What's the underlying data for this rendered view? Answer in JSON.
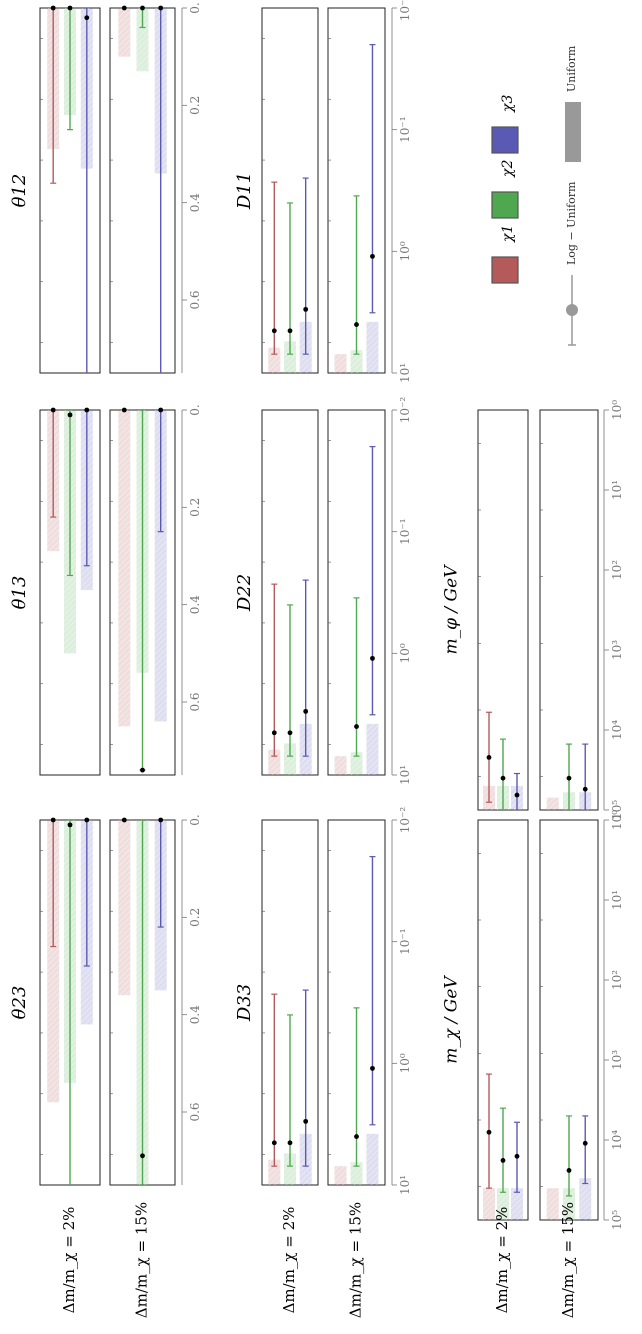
{
  "row_labels": [
    "Δm/m_χ = 2%",
    "Δm/m_χ = 15%"
  ],
  "colors": {
    "chi1": "#b55a5a",
    "chi2": "#4fa84f",
    "chi3": "#5a5ab5",
    "axis": "#444444",
    "tick_text": "#777777"
  },
  "legend": {
    "chi_labels": [
      "χ1",
      "χ2",
      "χ3"
    ],
    "prior_labels": [
      "Log − Uniform",
      "Uniform"
    ]
  },
  "chart_data": [
    {
      "type": "interval",
      "title": "θ12",
      "scale": "linear",
      "xlim": [
        0,
        0.75
      ],
      "ticks": [
        0,
        0.2,
        0.4,
        0.6
      ],
      "tick_labels": [
        "0.",
        "0.2",
        "0.4",
        "0.6"
      ],
      "rows": [
        {
          "series": [
            {
              "name": "χ1",
              "point": 0.0,
              "lo": 0.0,
              "hi": 0.36,
              "band": [
                0.0,
                0.29
              ]
            },
            {
              "name": "χ2",
              "point": 0.0,
              "lo": 0.0,
              "hi": 0.25,
              "band": [
                0.0,
                0.22
              ]
            },
            {
              "name": "χ3",
              "point": 0.02,
              "lo": 0.0,
              "hi": 0.75,
              "band": [
                0.0,
                0.33
              ]
            }
          ]
        },
        {
          "series": [
            {
              "name": "χ1",
              "point": 0.0,
              "lo": 0.0,
              "hi": 0.0,
              "band": [
                0.0,
                0.1
              ]
            },
            {
              "name": "χ2",
              "point": 0.0,
              "lo": 0.0,
              "hi": 0.04,
              "band": [
                0.0,
                0.13
              ]
            },
            {
              "name": "χ3",
              "point": 0.0,
              "lo": 0.0,
              "hi": 0.75,
              "band": [
                0.0,
                0.34
              ]
            }
          ]
        }
      ]
    },
    {
      "type": "interval",
      "title": "θ13",
      "scale": "linear",
      "xlim": [
        0,
        0.75
      ],
      "ticks": [
        0,
        0.2,
        0.4,
        0.6
      ],
      "tick_labels": [
        "0.",
        "0.2",
        "0.4",
        "0.6"
      ],
      "rows": [
        {
          "series": [
            {
              "name": "χ1",
              "point": 0.0,
              "lo": 0.0,
              "hi": 0.22,
              "band": [
                0.0,
                0.29
              ]
            },
            {
              "name": "χ2",
              "point": 0.01,
              "lo": 0.0,
              "hi": 0.34,
              "band": [
                0.0,
                0.5
              ]
            },
            {
              "name": "χ3",
              "point": 0.0,
              "lo": 0.0,
              "hi": 0.32,
              "band": [
                0.0,
                0.37
              ]
            }
          ]
        },
        {
          "series": [
            {
              "name": "χ1",
              "point": 0.0,
              "lo": 0.0,
              "hi": 0.0,
              "band": [
                0.0,
                0.65
              ]
            },
            {
              "name": "χ2",
              "point": 0.74,
              "lo": 0.0,
              "hi": 0.74,
              "band": [
                0.0,
                0.54
              ]
            },
            {
              "name": "χ3",
              "point": 0.0,
              "lo": 0.0,
              "hi": 0.25,
              "band": [
                0.0,
                0.64
              ]
            }
          ]
        }
      ]
    },
    {
      "type": "interval",
      "title": "θ23",
      "scale": "linear",
      "xlim": [
        0,
        0.75
      ],
      "ticks": [
        0,
        0.2,
        0.4,
        0.6
      ],
      "tick_labels": [
        "0.",
        "0.2",
        "0.4",
        "0.6"
      ],
      "rows": [
        {
          "series": [
            {
              "name": "χ1",
              "point": 0.0,
              "lo": 0.0,
              "hi": 0.26,
              "band": [
                0.0,
                0.58
              ]
            },
            {
              "name": "χ2",
              "point": 0.01,
              "lo": 0.0,
              "hi": 0.75,
              "band": [
                0.0,
                0.54
              ]
            },
            {
              "name": "χ3",
              "point": 0.0,
              "lo": 0.0,
              "hi": 0.3,
              "band": [
                0.0,
                0.42
              ]
            }
          ]
        },
        {
          "series": [
            {
              "name": "χ1",
              "point": 0.0,
              "lo": 0.0,
              "hi": 0.0,
              "band": [
                0.0,
                0.36
              ]
            },
            {
              "name": "χ2",
              "point": 0.69,
              "lo": 0.0,
              "hi": 0.75,
              "band": [
                0.0,
                0.75
              ]
            },
            {
              "name": "χ3",
              "point": 0.0,
              "lo": 0.0,
              "hi": 0.22,
              "band": [
                0.0,
                0.35
              ]
            }
          ]
        }
      ]
    },
    {
      "type": "interval",
      "title": "D11",
      "scale": "log",
      "xlim": [
        0.01,
        10
      ],
      "ticks": [
        0.01,
        0.1,
        1,
        10
      ],
      "tick_labels": [
        "10⁻²",
        "10⁻¹",
        "10⁰",
        "10¹"
      ],
      "rows": [
        {
          "series": [
            {
              "name": "χ1",
              "point": 4.5,
              "lo": 0.27,
              "hi": 7.0,
              "band": [
                6.2,
                10
              ]
            },
            {
              "name": "χ2",
              "point": 4.5,
              "lo": 0.4,
              "hi": 7.0,
              "band": [
                5.5,
                10
              ]
            },
            {
              "name": "χ3",
              "point": 3.0,
              "lo": 0.25,
              "hi": 7.0,
              "band": [
                3.8,
                10
              ]
            }
          ]
        },
        {
          "series": [
            {
              "name": "χ1",
              "point": null,
              "lo": null,
              "hi": null,
              "band": [
                7.0,
                10
              ]
            },
            {
              "name": "χ2",
              "point": 4.0,
              "lo": 0.35,
              "hi": 7.0,
              "band": [
                6.5,
                10
              ]
            },
            {
              "name": "χ3",
              "point": 1.1,
              "lo": 0.02,
              "hi": 3.2,
              "band": [
                3.8,
                10
              ]
            }
          ]
        }
      ]
    },
    {
      "type": "interval",
      "title": "D22",
      "scale": "log",
      "xlim": [
        0.01,
        10
      ],
      "ticks": [
        0.01,
        0.1,
        1,
        10
      ],
      "tick_labels": [
        "10⁻²",
        "10⁻¹",
        "10⁰",
        "10¹"
      ],
      "rows": [
        {
          "series": [
            {
              "name": "χ1",
              "point": 4.5,
              "lo": 0.27,
              "hi": 7.0,
              "band": [
                6.2,
                10
              ]
            },
            {
              "name": "χ2",
              "point": 4.5,
              "lo": 0.4,
              "hi": 7.0,
              "band": [
                5.5,
                10
              ]
            },
            {
              "name": "χ3",
              "point": 3.0,
              "lo": 0.25,
              "hi": 7.0,
              "band": [
                3.8,
                10
              ]
            }
          ]
        },
        {
          "series": [
            {
              "name": "χ1",
              "point": null,
              "lo": null,
              "hi": null,
              "band": [
                7.0,
                10
              ]
            },
            {
              "name": "χ2",
              "point": 4.0,
              "lo": 0.35,
              "hi": 7.0,
              "band": [
                6.5,
                10
              ]
            },
            {
              "name": "χ3",
              "point": 1.1,
              "lo": 0.02,
              "hi": 3.2,
              "band": [
                3.8,
                10
              ]
            }
          ]
        }
      ]
    },
    {
      "type": "interval",
      "title": "D33",
      "scale": "log",
      "xlim": [
        0.01,
        10
      ],
      "ticks": [
        0.01,
        0.1,
        1,
        10
      ],
      "tick_labels": [
        "10⁻²",
        "10⁻¹",
        "10⁰",
        "10¹"
      ],
      "rows": [
        {
          "series": [
            {
              "name": "χ1",
              "point": 4.5,
              "lo": 0.27,
              "hi": 7.0,
              "band": [
                6.2,
                10
              ]
            },
            {
              "name": "χ2",
              "point": 4.5,
              "lo": 0.4,
              "hi": 7.0,
              "band": [
                5.5,
                10
              ]
            },
            {
              "name": "χ3",
              "point": 3.0,
              "lo": 0.25,
              "hi": 7.0,
              "band": [
                3.8,
                10
              ]
            }
          ]
        },
        {
          "series": [
            {
              "name": "χ1",
              "point": null,
              "lo": null,
              "hi": null,
              "band": [
                7.0,
                10
              ]
            },
            {
              "name": "χ2",
              "point": 4.0,
              "lo": 0.35,
              "hi": 7.0,
              "band": [
                6.5,
                10
              ]
            },
            {
              "name": "χ3",
              "point": 1.1,
              "lo": 0.02,
              "hi": 3.2,
              "band": [
                3.8,
                10
              ]
            }
          ]
        }
      ]
    },
    {
      "type": "interval",
      "title": "",
      "xlabel": "m_χ / GeV",
      "scale": "log",
      "xlim": [
        1,
        100000
      ],
      "ticks": [
        1,
        10,
        100,
        1000,
        10000,
        100000
      ],
      "tick_labels": [
        "10⁰",
        "10¹",
        "10²",
        "10³",
        "10⁴",
        "10⁵"
      ],
      "rows": [
        {
          "series": [
            {
              "name": "χ1",
              "point": 8000,
              "lo": 1500,
              "hi": 40000,
              "band": [
                40000,
                100000
              ]
            },
            {
              "name": "χ2",
              "point": 18000,
              "lo": 4000,
              "hi": 45000,
              "band": [
                40000,
                100000
              ]
            },
            {
              "name": "χ3",
              "point": 16000,
              "lo": 6000,
              "hi": 45000,
              "band": [
                40000,
                100000
              ]
            }
          ]
        },
        {
          "series": [
            {
              "name": "χ1",
              "point": null,
              "lo": null,
              "hi": null,
              "band": [
                40000,
                100000
              ]
            },
            {
              "name": "χ2",
              "point": 24000,
              "lo": 5000,
              "hi": 50000,
              "band": [
                40000,
                100000
              ]
            },
            {
              "name": "χ3",
              "point": 11000,
              "lo": 5000,
              "hi": 35000,
              "band": [
                30000,
                100000
              ]
            }
          ]
        }
      ]
    },
    {
      "type": "interval",
      "title": "",
      "xlabel": "m_φ / GeV",
      "scale": "log",
      "xlim": [
        1,
        100000
      ],
      "ticks": [
        1,
        10,
        100,
        1000,
        10000,
        100000
      ],
      "tick_labels": [
        "10⁰",
        "10¹",
        "10²",
        "10³",
        "10⁴",
        "10⁵"
      ],
      "rows": [
        {
          "series": [
            {
              "name": "χ1",
              "point": 22000,
              "lo": 6000,
              "hi": 80000,
              "band": [
                50000,
                100000
              ]
            },
            {
              "name": "χ2",
              "point": 40000,
              "lo": 13000,
              "hi": 100000,
              "band": [
                50000,
                100000
              ]
            },
            {
              "name": "χ3",
              "point": 65000,
              "lo": 35000,
              "hi": 100000,
              "band": [
                50000,
                100000
              ]
            }
          ]
        },
        {
          "series": [
            {
              "name": "χ1",
              "point": null,
              "lo": null,
              "hi": null,
              "band": [
                70000,
                100000
              ]
            },
            {
              "name": "χ2",
              "point": 40000,
              "lo": 15000,
              "hi": 100000,
              "band": [
                60000,
                100000
              ]
            },
            {
              "name": "χ3",
              "point": 55000,
              "lo": 15000,
              "hi": 100000,
              "band": [
                60000,
                100000
              ]
            }
          ]
        }
      ]
    }
  ]
}
